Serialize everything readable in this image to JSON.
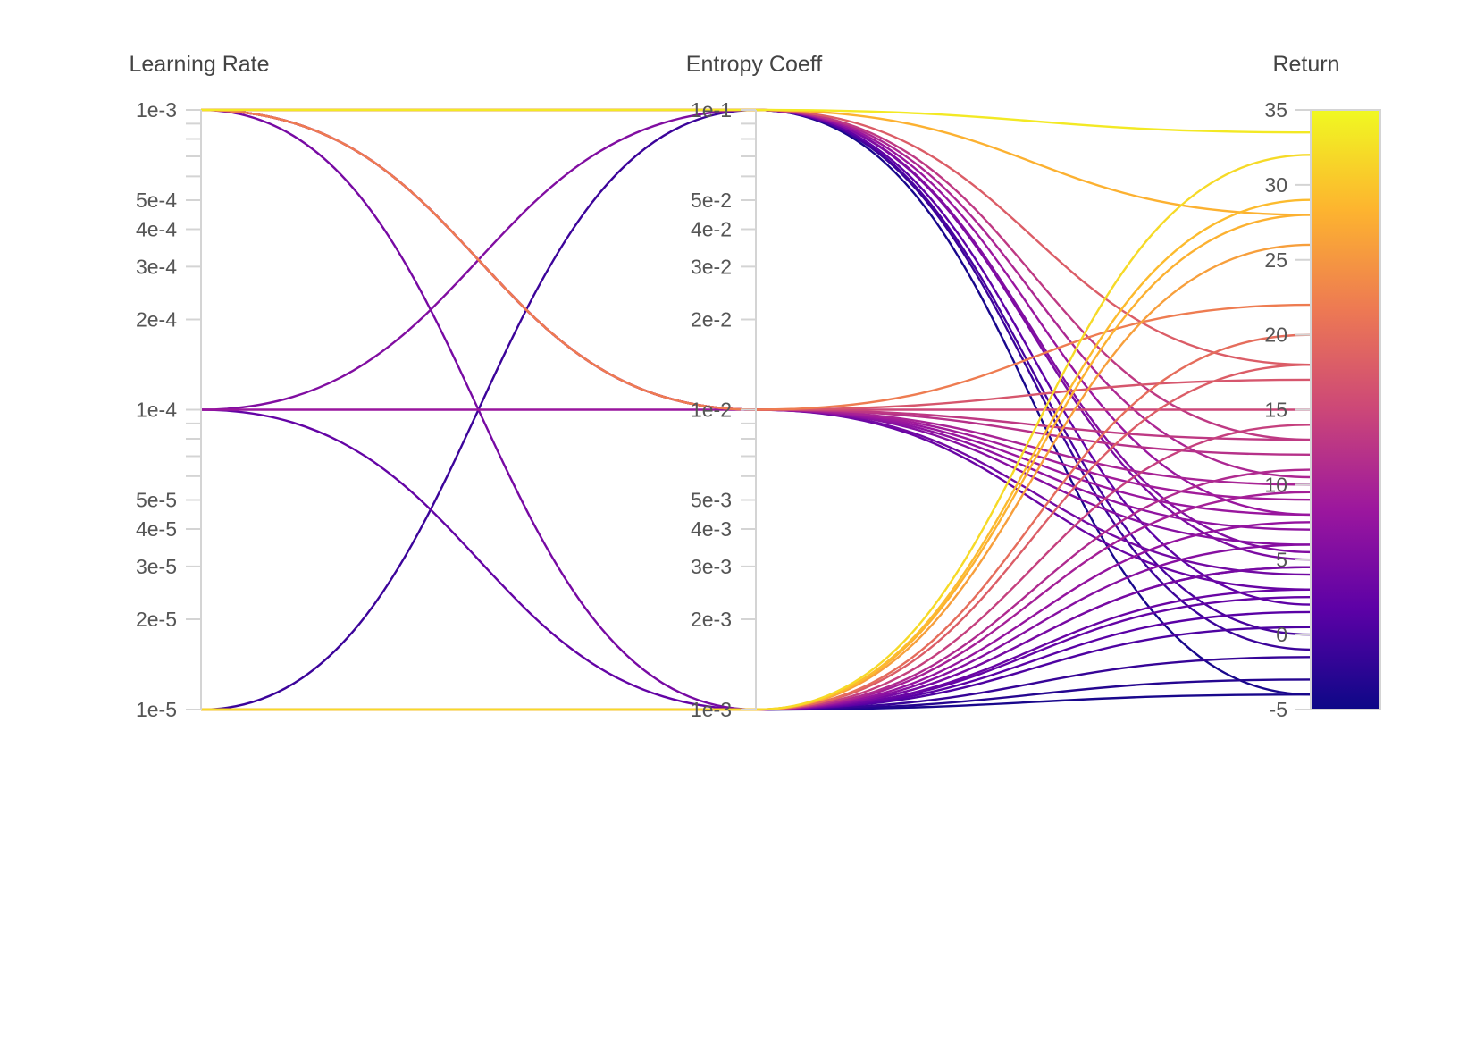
{
  "chart_data": {
    "type": "parallel_coordinates",
    "colorscale": "plasma",
    "colorscale_stops": [
      "#0d0887",
      "#5c01a6",
      "#9c179e",
      "#cc4778",
      "#ed7953",
      "#fdb42f",
      "#f0f921"
    ],
    "axes": [
      {
        "key": "lr",
        "title": "Learning Rate",
        "scale": "log",
        "range": [
          1e-05,
          0.001
        ],
        "labeled_ticks": [
          {
            "value": 0.001,
            "label": "1e-3"
          },
          {
            "value": 0.0005,
            "label": "5e-4"
          },
          {
            "value": 0.0004,
            "label": "4e-4"
          },
          {
            "value": 0.0003,
            "label": "3e-4"
          },
          {
            "value": 0.0002,
            "label": "2e-4"
          },
          {
            "value": 0.0001,
            "label": "1e-4"
          },
          {
            "value": 5e-05,
            "label": "5e-5"
          },
          {
            "value": 4e-05,
            "label": "4e-5"
          },
          {
            "value": 3e-05,
            "label": "3e-5"
          },
          {
            "value": 2e-05,
            "label": "2e-5"
          },
          {
            "value": 1e-05,
            "label": "1e-5"
          }
        ],
        "minor_ticks": [
          0.0009,
          0.0008,
          0.0007,
          0.0006,
          9e-05,
          8e-05,
          7e-05,
          6e-05
        ]
      },
      {
        "key": "ent",
        "title": "Entropy Coeff",
        "scale": "log",
        "range": [
          0.001,
          0.1
        ],
        "labeled_ticks": [
          {
            "value": 0.1,
            "label": "1e-1"
          },
          {
            "value": 0.05,
            "label": "5e-2"
          },
          {
            "value": 0.04,
            "label": "4e-2"
          },
          {
            "value": 0.03,
            "label": "3e-2"
          },
          {
            "value": 0.02,
            "label": "2e-2"
          },
          {
            "value": 0.01,
            "label": "1e-2"
          },
          {
            "value": 0.005,
            "label": "5e-3"
          },
          {
            "value": 0.004,
            "label": "4e-3"
          },
          {
            "value": 0.003,
            "label": "3e-3"
          },
          {
            "value": 0.002,
            "label": "2e-3"
          },
          {
            "value": 0.001,
            "label": "1e-3"
          }
        ],
        "minor_ticks": [
          0.09,
          0.08,
          0.07,
          0.06,
          0.009,
          0.008,
          0.007,
          0.006
        ]
      },
      {
        "key": "ret",
        "title": "Return",
        "scale": "linear",
        "range": [
          -5,
          35
        ],
        "labeled_ticks": [
          {
            "value": 35,
            "label": "35"
          },
          {
            "value": 30,
            "label": "30"
          },
          {
            "value": 25,
            "label": "25"
          },
          {
            "value": 20,
            "label": "20"
          },
          {
            "value": 15,
            "label": "15"
          },
          {
            "value": 10,
            "label": "10"
          },
          {
            "value": 5,
            "label": "5"
          },
          {
            "value": 0,
            "label": "0"
          },
          {
            "value": -5,
            "label": "-5"
          }
        ]
      }
    ],
    "color_range": [
      -5,
      35
    ],
    "runs": [
      {
        "lr": 0.001,
        "ent": 0.1,
        "ret": 33.5
      },
      {
        "lr": 0.001,
        "ent": 0.1,
        "ret": 28.0
      },
      {
        "lr": 0.001,
        "ent": 0.1,
        "ret": 18.0
      },
      {
        "lr": 0.001,
        "ent": 0.1,
        "ret": 13.0
      },
      {
        "lr": 0.001,
        "ent": 0.1,
        "ret": 10.5
      },
      {
        "lr": 0.001,
        "ent": 0.1,
        "ret": 8.0
      },
      {
        "lr": 0.001,
        "ent": 0.1,
        "ret": 5.0
      },
      {
        "lr": 0.001,
        "ent": 0.1,
        "ret": 2.0
      },
      {
        "lr": 0.001,
        "ent": 0.1,
        "ret": 0.0
      },
      {
        "lr": 0.001,
        "ent": 0.1,
        "ret": -4.0
      },
      {
        "lr": 0.001,
        "ent": 0.01,
        "ret": 22.0
      },
      {
        "lr": 0.001,
        "ent": 0.01,
        "ret": 17.0
      },
      {
        "lr": 0.001,
        "ent": 0.01,
        "ret": 15.0
      },
      {
        "lr": 0.001,
        "ent": 0.01,
        "ret": 13.0
      },
      {
        "lr": 0.001,
        "ent": 0.01,
        "ret": 12.0
      },
      {
        "lr": 0.001,
        "ent": 0.01,
        "ret": 10.0
      },
      {
        "lr": 0.001,
        "ent": 0.01,
        "ret": 9.0
      },
      {
        "lr": 0.001,
        "ent": 0.01,
        "ret": 7.0
      },
      {
        "lr": 0.001,
        "ent": 0.01,
        "ret": 6.0
      },
      {
        "lr": 0.001,
        "ent": 0.01,
        "ret": 4.0
      },
      {
        "lr": 0.001,
        "ent": 0.01,
        "ret": 3.0
      },
      {
        "lr": 0.001,
        "ent": 0.001,
        "ret": 4.5
      },
      {
        "lr": 0.0001,
        "ent": 0.1,
        "ret": 5.5
      },
      {
        "lr": 0.0001,
        "ent": 0.01,
        "ret": 8.0
      },
      {
        "lr": 0.0001,
        "ent": 0.001,
        "ret": 2.5
      },
      {
        "lr": 1e-05,
        "ent": 0.1,
        "ret": -1.0
      },
      {
        "lr": 1e-05,
        "ent": 0.001,
        "ret": 32.0
      },
      {
        "lr": 1e-05,
        "ent": 0.001,
        "ret": 29.0
      },
      {
        "lr": 1e-05,
        "ent": 0.001,
        "ret": 28.0
      },
      {
        "lr": 1e-05,
        "ent": 0.001,
        "ret": 26.0
      },
      {
        "lr": 1e-05,
        "ent": 0.001,
        "ret": 20.0
      },
      {
        "lr": 1e-05,
        "ent": 0.001,
        "ret": 18.0
      },
      {
        "lr": 1e-05,
        "ent": 0.001,
        "ret": 14.0
      },
      {
        "lr": 1e-05,
        "ent": 0.001,
        "ret": 11.0
      },
      {
        "lr": 1e-05,
        "ent": 0.001,
        "ret": 9.5
      },
      {
        "lr": 1e-05,
        "ent": 0.001,
        "ret": 7.5
      },
      {
        "lr": 1e-05,
        "ent": 0.001,
        "ret": 6.0
      },
      {
        "lr": 1e-05,
        "ent": 0.001,
        "ret": 4.5
      },
      {
        "lr": 1e-05,
        "ent": 0.001,
        "ret": 3.0
      },
      {
        "lr": 1e-05,
        "ent": 0.001,
        "ret": 1.5
      },
      {
        "lr": 1e-05,
        "ent": 0.001,
        "ret": 0.5
      },
      {
        "lr": 1e-05,
        "ent": 0.001,
        "ret": -1.5
      },
      {
        "lr": 1e-05,
        "ent": 0.001,
        "ret": -3.0
      },
      {
        "lr": 1e-05,
        "ent": 0.001,
        "ret": -4.0
      }
    ]
  }
}
